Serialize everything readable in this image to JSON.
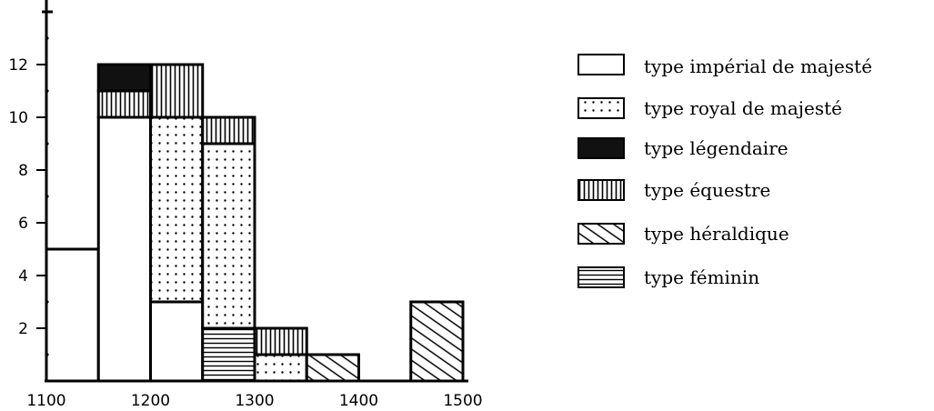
{
  "chart_data": {
    "type": "bar",
    "stacked": true,
    "histogram": true,
    "title": "",
    "xlabel": "",
    "ylabel": "",
    "xlim": [
      1100,
      1500
    ],
    "ylim": [
      0,
      14
    ],
    "x_ticks": [
      {
        "value": 1100,
        "label": "1100"
      },
      {
        "value": 1200,
        "label": "1200"
      },
      {
        "value": 1300,
        "label": "1300"
      },
      {
        "value": 1400,
        "label": "1400"
      },
      {
        "value": 1500,
        "label": "1500"
      }
    ],
    "y_ticks": [
      {
        "value": 2,
        "label": "2"
      },
      {
        "value": 4,
        "label": "4"
      },
      {
        "value": 6,
        "label": "6"
      },
      {
        "value": 8,
        "label": "8"
      },
      {
        "value": 10,
        "label": "10"
      },
      {
        "value": 12,
        "label": "12"
      }
    ],
    "y_minor_ticks": [
      1,
      3,
      5,
      7,
      9,
      11,
      13
    ],
    "y_top_tick": 14,
    "legend_position": "right",
    "series": [
      {
        "name": "type impérial de majesté",
        "pattern": "empty"
      },
      {
        "name": "type royal de majesté",
        "pattern": "dots"
      },
      {
        "name": "type légendaire",
        "pattern": "solid"
      },
      {
        "name": "type équestre",
        "pattern": "vertical"
      },
      {
        "name": "type héraldique",
        "pattern": "diagonal"
      },
      {
        "name": "type féminin",
        "pattern": "horizontal"
      }
    ],
    "bins": [
      {
        "start": 1100,
        "end": 1150,
        "segments": [
          {
            "series": 0,
            "value": 5
          }
        ]
      },
      {
        "start": 1150,
        "end": 1200,
        "segments": [
          {
            "series": 0,
            "value": 10
          },
          {
            "series": 3,
            "value": 1
          },
          {
            "series": 2,
            "value": 1
          }
        ]
      },
      {
        "start": 1200,
        "end": 1250,
        "segments": [
          {
            "series": 0,
            "value": 3
          },
          {
            "series": 1,
            "value": 7
          },
          {
            "series": 3,
            "value": 2
          }
        ]
      },
      {
        "start": 1250,
        "end": 1300,
        "segments": [
          {
            "series": 5,
            "value": 2
          },
          {
            "series": 1,
            "value": 7
          },
          {
            "series": 3,
            "value": 1
          }
        ]
      },
      {
        "start": 1300,
        "end": 1350,
        "segments": [
          {
            "series": 1,
            "value": 1
          },
          {
            "series": 3,
            "value": 1
          }
        ]
      },
      {
        "start": 1350,
        "end": 1400,
        "segments": [
          {
            "series": 4,
            "value": 1
          }
        ]
      },
      {
        "start": 1450,
        "end": 1500,
        "segments": [
          {
            "series": 4,
            "value": 3
          }
        ]
      }
    ]
  }
}
